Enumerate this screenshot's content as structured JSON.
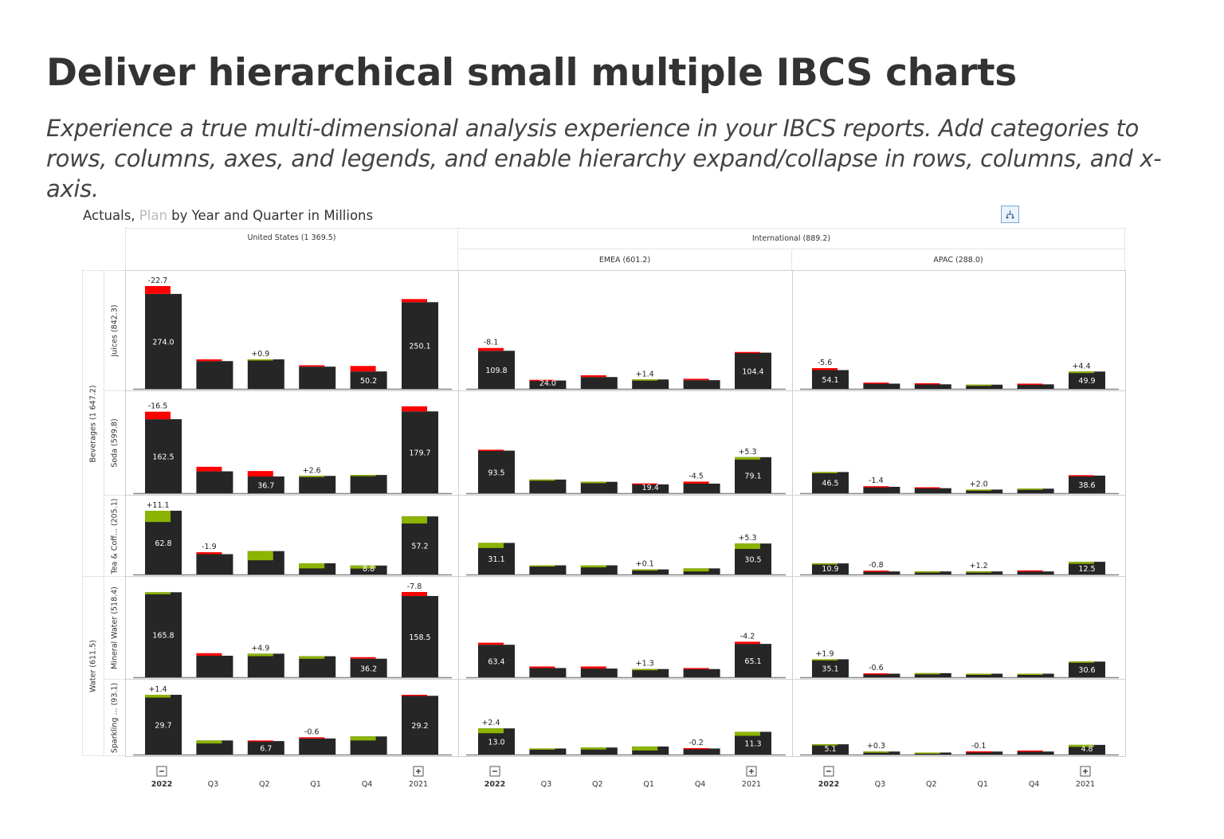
{
  "page": {
    "title": "Deliver hierarchical small multiple IBCS charts",
    "subtitle": "Experience a true multi-dimensional analysis experience in your IBCS reports. Add categories to rows, columns, axes, and legends, and enable hierarchy expand/collapse in rows, columns, and x-axis."
  },
  "toolbar": {
    "hierarchy_icon": "hierarchy-icon"
  },
  "colors": {
    "actual": "#262626",
    "negative": "#ff0000",
    "positive": "#8cb400",
    "axis": "#888888",
    "plan_title": "#bbbbbb"
  },
  "chart_data": {
    "type": "bar",
    "title_actuals": "Actuals,",
    "title_plan": "Plan",
    "title_rest": "by Year and Quarter in Millions",
    "categories": [
      "2022",
      "Q3",
      "Q2",
      "Q1",
      "Q4",
      "2021"
    ],
    "category_icons": [
      "collapse-minus-icon",
      "",
      "",
      "",
      "",
      "expand-plus-icon"
    ],
    "column_headers_level1": [
      "United States (1 369.5)",
      "International (889.2)"
    ],
    "column_headers_level2": [
      "EMEA (601.2)",
      "APAC (288.0)"
    ],
    "row_headers_level1": [
      "Beverages (1 647.2)",
      "Water (611.5)"
    ],
    "row_headers_level2": [
      "Juices (842.3)",
      "Soda (599.8)",
      "Tea & Coff...  (205.1)",
      "Mineral Water (518.4)",
      "Sparkling ...  (93.1)"
    ],
    "rows": [
      {
        "panels": [
          {
            "actual": [
              274.0,
              80,
              85,
              64,
              50.2,
              250.1
            ],
            "delta": [
              -22.7,
              -5,
              0.9,
              -4,
              -15.8,
              -9
            ],
            "actual_labels": [
              "274.0",
              "",
              "",
              "",
              "50.2",
              "250.1"
            ],
            "delta_labels": [
              "-22.7",
              "",
              "+0.9",
              "",
              "",
              ""
            ]
          },
          {
            "actual": [
              109.8,
              24.0,
              34,
              27,
              25,
              104.4
            ],
            "delta": [
              -8.1,
              -2,
              -5,
              1.4,
              -4,
              -2
            ],
            "actual_labels": [
              "109.8",
              "24.0",
              "",
              "",
              "",
              "104.4"
            ],
            "delta_labels": [
              "-8.1",
              "",
              "",
              "+1.4",
              "",
              ""
            ]
          },
          {
            "actual": [
              54.1,
              15,
              13,
              12,
              13,
              49.9
            ],
            "delta": [
              -5.6,
              -3,
              -3,
              2,
              -2,
              4.4
            ],
            "actual_labels": [
              "54.1",
              "",
              "",
              "",
              "",
              "49.9"
            ],
            "delta_labels": [
              "-5.6",
              "",
              "",
              "",
              "",
              "+4.4"
            ]
          }
        ]
      },
      {
        "panels": [
          {
            "actual": [
              162.5,
              48,
              36.7,
              38,
              40,
              179.7
            ],
            "delta": [
              -16.5,
              -10,
              -12,
              2.6,
              1,
              -11
            ],
            "actual_labels": [
              "162.5",
              "",
              "36.7",
              "",
              "",
              "179.7"
            ],
            "delta_labels": [
              "-16.5",
              "",
              "",
              "+2.6",
              "",
              ""
            ]
          },
          {
            "actual": [
              93.5,
              30,
              25,
              19.4,
              21,
              79.1
            ],
            "delta": [
              -2,
              1,
              3,
              -2,
              -4.5,
              5.3
            ],
            "actual_labels": [
              "93.5",
              "",
              "",
              "19.4",
              "",
              "79.1"
            ],
            "delta_labels": [
              "",
              "",
              "",
              "",
              "-4.5",
              "+5.3"
            ]
          },
          {
            "actual": [
              46.5,
              14,
              11,
              8,
              10,
              38.6
            ],
            "delta": [
              2,
              -1.4,
              -2,
              2.0,
              2,
              -1
            ],
            "actual_labels": [
              "46.5",
              "",
              "",
              "",
              "",
              "38.6"
            ],
            "delta_labels": [
              "",
              "-1.4",
              "",
              "+2.0",
              "",
              ""
            ]
          }
        ]
      },
      {
        "panels": [
          {
            "actual": [
              62.8,
              20,
              23,
              11,
              8.8,
              57.2
            ],
            "delta": [
              11.1,
              -1.9,
              9,
              5,
              3,
              7
            ],
            "actual_labels": [
              "62.8",
              "",
              "",
              "",
              "8.8",
              "57.2"
            ],
            "delta_labels": [
              "+11.1",
              "-1.9",
              "",
              "",
              "",
              ""
            ]
          },
          {
            "actual": [
              31.1,
              9,
              9,
              5,
              6,
              30.5
            ],
            "delta": [
              5,
              1,
              2,
              0.1,
              3,
              5.3
            ],
            "actual_labels": [
              "31.1",
              "",
              "",
              "",
              "",
              "30.5"
            ],
            "delta_labels": [
              "",
              "",
              "",
              "+0.1",
              "",
              "+5.3"
            ]
          },
          {
            "actual": [
              10.9,
              3,
              3,
              3,
              3,
              12.5
            ],
            "delta": [
              1,
              -0.8,
              0.5,
              1.2,
              -1,
              2
            ],
            "actual_labels": [
              "10.9",
              "",
              "",
              "",
              "",
              "12.5"
            ],
            "delta_labels": [
              "",
              "-0.8",
              "",
              "+1.2",
              "",
              ""
            ]
          }
        ]
      },
      {
        "panels": [
          {
            "actual": [
              165.8,
              42,
              46,
              41,
              36.2,
              158.5
            ],
            "delta": [
              4,
              -5,
              4.9,
              5,
              -3,
              -7.8
            ],
            "actual_labels": [
              "165.8",
              "",
              "",
              "",
              "36.2",
              "158.5"
            ],
            "delta_labels": [
              "",
              "",
              "+4.9",
              "",
              "",
              "-7.8"
            ]
          },
          {
            "actual": [
              63.4,
              18,
              17,
              16,
              16,
              65.1
            ],
            "delta": [
              -4,
              -3,
              -4,
              1.3,
              -2,
              -4.2
            ],
            "actual_labels": [
              "63.4",
              "",
              "",
              "",
              "",
              "65.1"
            ],
            "delta_labels": [
              "",
              "",
              "",
              "+1.3",
              "",
              "-4.2"
            ]
          },
          {
            "actual": [
              35.1,
              7,
              8,
              7,
              7,
              30.6
            ],
            "delta": [
              1.9,
              -0.6,
              1,
              1,
              1,
              1
            ],
            "actual_labels": [
              "35.1",
              "",
              "",
              "",
              "",
              "30.6"
            ],
            "delta_labels": [
              "+1.9",
              "-0.6",
              "",
              "",
              "",
              ""
            ]
          }
        ]
      },
      {
        "panels": [
          {
            "actual": [
              29.7,
              7,
              6.7,
              8,
              9,
              29.2
            ],
            "delta": [
              1.4,
              1.5,
              -0.3,
              -0.6,
              2,
              -0.5
            ],
            "actual_labels": [
              "29.7",
              "",
              "6.7",
              "",
              "",
              "29.2"
            ],
            "delta_labels": [
              "+1.4",
              "",
              "",
              "-0.6",
              "",
              ""
            ]
          },
          {
            "actual": [
              13.0,
              3,
              3.5,
              4,
              3,
              11.3
            ],
            "delta": [
              2.4,
              0.5,
              1,
              2,
              -0.2,
              2
            ],
            "actual_labels": [
              "13.0",
              "",
              "",
              "",
              "",
              "11.3"
            ],
            "delta_labels": [
              "+2.4",
              "",
              "",
              "",
              "-0.2",
              ""
            ]
          },
          {
            "actual": [
              5.1,
              1.5,
              1,
              1.5,
              1.5,
              4.8
            ],
            "delta": [
              0.5,
              0.3,
              0.5,
              -0.1,
              -0.5,
              1
            ],
            "actual_labels": [
              "5.1",
              "",
              "",
              "",
              "",
              "4.8"
            ],
            "delta_labels": [
              "",
              "+0.3",
              "",
              "-0.1",
              "",
              ""
            ]
          }
        ]
      }
    ]
  }
}
